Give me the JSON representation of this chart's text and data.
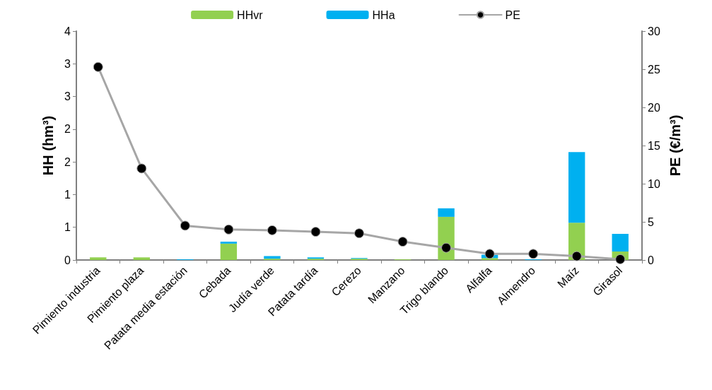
{
  "chart_data": {
    "type": "bar",
    "stacked": true,
    "ylabel": "HH (hm³)",
    "y2label": "PE (€/m³)",
    "categories": [
      "Pimiento industria",
      "Pimiento plaza",
      "Patata media estación",
      "Cebada",
      "Judía verde",
      "Patata tardía",
      "Cerezo",
      "Manzano",
      "Trigo blando",
      "Alfalfa",
      "Almendro",
      "Maíz",
      "Girasol"
    ],
    "series": [
      {
        "name": "HHvr",
        "color": "#92d050",
        "values": [
          0.04,
          0.04,
          null,
          0.25,
          0.02,
          0.02,
          0.02,
          0.01,
          0.66,
          0.03,
          null,
          0.57,
          0.13
        ]
      },
      {
        "name": "HHa",
        "color": "#00b0f0",
        "values": [
          null,
          null,
          0.01,
          0.03,
          0.04,
          0.02,
          0.01,
          null,
          0.13,
          0.05,
          0.01,
          1.08,
          0.27
        ]
      },
      {
        "name": "PE",
        "type": "line",
        "axis": "y2",
        "color": "#a6a6a6",
        "values": [
          25.3,
          12.0,
          4.5,
          4.0,
          3.9,
          3.7,
          3.5,
          2.4,
          1.6,
          0.8,
          0.8,
          0.5,
          0.1
        ]
      }
    ],
    "ylim": [
      0,
      3.5
    ],
    "yticks": [
      0,
      {
        "value": 0.5,
        "label": "1"
      },
      1,
      {
        "value": 1.5,
        "label": "2"
      },
      2,
      {
        "value": 2.5,
        "label": "3"
      },
      3,
      {
        "value": 3.5,
        "label": "4"
      }
    ],
    "y2lim": [
      0,
      30
    ],
    "y2ticks": [
      0,
      5,
      10,
      15,
      20,
      25,
      30
    ],
    "grid": false,
    "legend": "top",
    "marker": "circle",
    "line_style": "solid"
  }
}
